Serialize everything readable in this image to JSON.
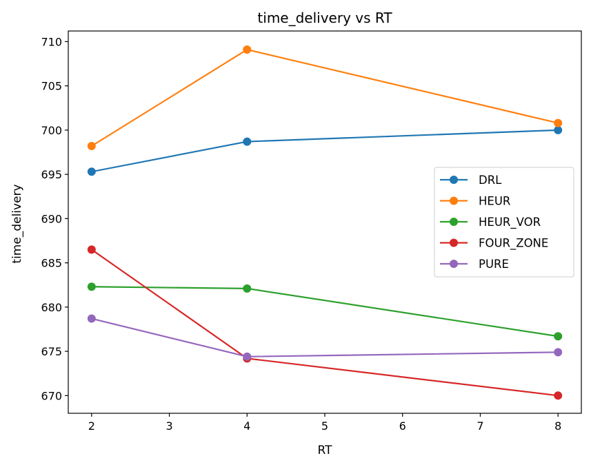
{
  "chart_data": {
    "type": "line",
    "title": "time_delivery vs RT",
    "xlabel": "RT",
    "ylabel": "time_delivery",
    "x": [
      2,
      4,
      8
    ],
    "xticks": [
      2,
      3,
      4,
      5,
      6,
      7,
      8
    ],
    "yticks": [
      670,
      675,
      680,
      685,
      690,
      695,
      700,
      705,
      710
    ],
    "xlim": [
      1.7,
      8.3
    ],
    "ylim": [
      668.0,
      711.2
    ],
    "grid": false,
    "legend_position": "center-right",
    "series": [
      {
        "name": "DRL",
        "color": "#1f77b4",
        "values": [
          695.3,
          698.7,
          700.0
        ]
      },
      {
        "name": "HEUR",
        "color": "#ff7f0e",
        "values": [
          698.2,
          709.1,
          700.8
        ]
      },
      {
        "name": "HEUR_VOR",
        "color": "#2ca02c",
        "values": [
          682.3,
          682.1,
          676.7
        ]
      },
      {
        "name": "FOUR_ZONE",
        "color": "#d62728",
        "values": [
          686.5,
          674.2,
          670.0
        ]
      },
      {
        "name": "PURE",
        "color": "#9467bd",
        "values": [
          678.7,
          674.4,
          674.9
        ]
      }
    ]
  }
}
